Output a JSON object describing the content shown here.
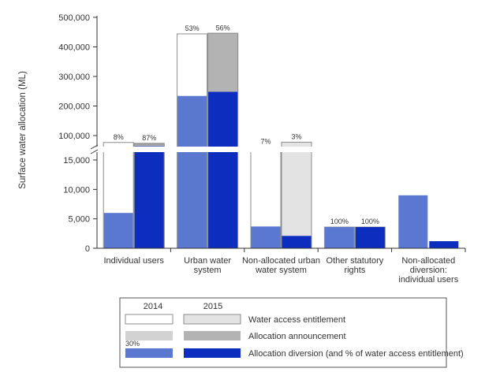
{
  "chart_data": {
    "type": "bar",
    "ylabel": "Surface water allocation (ML)",
    "yaxis_broken": true,
    "lower_ylim": [
      0,
      15000
    ],
    "upper_ylim": [
      100000,
      500000
    ],
    "lower_ticks": [
      "0",
      "5,000",
      "10,000",
      "15,000"
    ],
    "upper_ticks": [
      "100,000",
      "200,000",
      "300,000",
      "400,000",
      "500,000"
    ],
    "categories": [
      {
        "lines": [
          "Individual users"
        ]
      },
      {
        "lines": [
          "Urban water",
          "system"
        ]
      },
      {
        "lines": [
          "Non-allocated urban",
          "water system"
        ]
      },
      {
        "lines": [
          "Other statutory",
          "rights"
        ]
      },
      {
        "lines": [
          "Non-allocated",
          "diversion:",
          "individual users"
        ]
      }
    ],
    "series": [
      {
        "name": "2014",
        "entitlement": [
          76000,
          444000,
          60000,
          3600,
          null
        ],
        "announcement": [
          null,
          null,
          null,
          null,
          null
        ],
        "diversion": [
          6000,
          234000,
          3700,
          3600,
          9000
        ],
        "diversion_pct": [
          "8%",
          "53%",
          "7%",
          "100%",
          null
        ]
      },
      {
        "name": "2015",
        "entitlement": [
          73000,
          446000,
          77000,
          3600,
          null
        ],
        "announcement": [
          70000,
          446000,
          null,
          null,
          null
        ],
        "diversion": [
          63000,
          248000,
          2100,
          3600,
          1200
        ],
        "diversion_pct": [
          "87%",
          "56%",
          "3%",
          "100%",
          null
        ]
      }
    ],
    "legend": {
      "year_2014": "2014",
      "year_2015": "2015",
      "entitlement": "Water access entitlement",
      "announcement": "Allocation announcement",
      "diversion": "Allocation diversion (and % of water access entitlement)",
      "sample_pct": "30%"
    },
    "colors": {
      "entitlement_2014": "#ffffff",
      "entitlement_2015": "#e3e3e3",
      "announcement_2014": "#d2d2d2",
      "announcement_2015": "#b3b3b3",
      "diversion_2014": "#5a78d0",
      "diversion_2015": "#0d2dbf",
      "border": "#8c8c8c"
    }
  }
}
